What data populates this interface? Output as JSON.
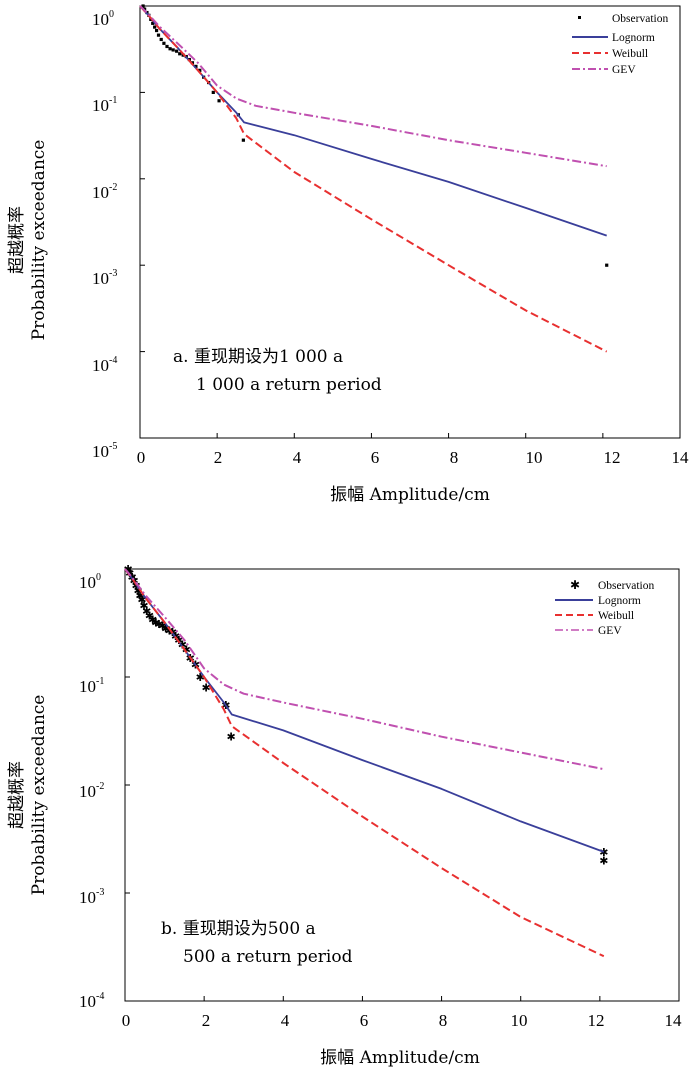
{
  "chart_data": [
    {
      "type": "line",
      "panel_label": "a",
      "annotation_cn": "a. 重现期设为1 000 a",
      "annotation_en": "1 000 a return period",
      "xlabel": "振幅 Amplitude/cm",
      "ylabel_cn": "超越概率",
      "ylabel_en": "Probability exceedance",
      "xlim": [
        0,
        14
      ],
      "ylim": [
        1e-05,
        1
      ],
      "yscale": "log",
      "xticks": [
        0,
        2,
        4,
        6,
        8,
        10,
        12,
        14
      ],
      "yticks": [
        {
          "base": "10",
          "exp": "0",
          "value": 1
        },
        {
          "base": "10",
          "exp": "-1",
          "value": 0.1
        },
        {
          "base": "10",
          "exp": "-2",
          "value": 0.01
        },
        {
          "base": "10",
          "exp": "-3",
          "value": 0.001
        },
        {
          "base": "10",
          "exp": "-4",
          "value": 0.0001
        },
        {
          "base": "10",
          "exp": "-5",
          "value": 1e-05
        }
      ],
      "legend_position": "top-right",
      "series": [
        {
          "name": "Observation",
          "kind": "points",
          "color": "#000000",
          "x": [
            0.08,
            0.12,
            0.18,
            0.23,
            0.28,
            0.33,
            0.38,
            0.43,
            0.48,
            0.55,
            0.62,
            0.7,
            0.78,
            0.86,
            0.95,
            1.03,
            1.12,
            1.2,
            1.28,
            1.36,
            1.45,
            1.55,
            1.65,
            1.78,
            1.9,
            2.05,
            2.55,
            2.68,
            12.1
          ],
          "y": [
            1.0,
            0.92,
            0.84,
            0.78,
            0.7,
            0.63,
            0.57,
            0.52,
            0.46,
            0.41,
            0.37,
            0.34,
            0.32,
            0.31,
            0.3,
            0.28,
            0.27,
            0.26,
            0.24,
            0.22,
            0.2,
            0.18,
            0.15,
            0.13,
            0.1,
            0.08,
            0.055,
            0.028,
            0.001
          ]
        },
        {
          "name": "Lognorm",
          "kind": "line",
          "color": "#3a3f9a",
          "x": [
            0,
            0.2,
            0.5,
            1,
            1.5,
            2,
            2.5,
            2.7,
            4,
            6,
            8,
            10,
            12.1
          ],
          "y": [
            1.0,
            0.8,
            0.55,
            0.32,
            0.18,
            0.1,
            0.058,
            0.045,
            0.032,
            0.017,
            0.0092,
            0.0046,
            0.0022
          ]
        },
        {
          "name": "Weibull",
          "kind": "line",
          "color": "#e83030",
          "x": [
            0,
            0.2,
            0.5,
            1,
            1.5,
            2,
            2.5,
            2.7,
            4,
            6,
            8,
            10,
            12.1
          ],
          "y": [
            1.0,
            0.8,
            0.55,
            0.32,
            0.18,
            0.1,
            0.05,
            0.033,
            0.012,
            0.0034,
            0.001,
            0.0003,
            0.0001
          ]
        },
        {
          "name": "GEV",
          "kind": "line",
          "color": "#c050b0",
          "x": [
            0,
            0.2,
            0.5,
            1,
            1.5,
            2,
            2.5,
            3,
            4,
            6,
            8,
            10,
            12.1
          ],
          "y": [
            1.0,
            0.82,
            0.58,
            0.36,
            0.22,
            0.12,
            0.085,
            0.07,
            0.058,
            0.041,
            0.028,
            0.02,
            0.014
          ]
        }
      ]
    },
    {
      "type": "line",
      "panel_label": "b",
      "annotation_cn": "b. 重现期设为500 a",
      "annotation_en": "500 a return period",
      "xlabel": "振幅 Amplitude/cm",
      "ylabel_cn": "超越概率",
      "ylabel_en": "Probability exceedance",
      "xlim": [
        0,
        14
      ],
      "ylim": [
        0.0001,
        1
      ],
      "yscale": "log",
      "xticks": [
        0,
        2,
        4,
        6,
        8,
        10,
        12,
        14
      ],
      "yticks": [
        {
          "base": "10",
          "exp": "0",
          "value": 1
        },
        {
          "base": "10",
          "exp": "-1",
          "value": 0.1
        },
        {
          "base": "10",
          "exp": "-2",
          "value": 0.01
        },
        {
          "base": "10",
          "exp": "-3",
          "value": 0.001
        },
        {
          "base": "10",
          "exp": "-4",
          "value": 0.0001
        }
      ],
      "legend_position": "top-right",
      "series": [
        {
          "name": "Observation",
          "kind": "points",
          "color": "#000000",
          "x": [
            0.08,
            0.12,
            0.18,
            0.23,
            0.28,
            0.33,
            0.38,
            0.43,
            0.48,
            0.55,
            0.62,
            0.7,
            0.78,
            0.86,
            0.95,
            1.03,
            1.12,
            1.2,
            1.28,
            1.36,
            1.45,
            1.55,
            1.65,
            1.78,
            1.9,
            2.05,
            2.55,
            2.68,
            12.1,
            12.1
          ],
          "y": [
            1.0,
            0.92,
            0.84,
            0.78,
            0.7,
            0.63,
            0.57,
            0.52,
            0.46,
            0.41,
            0.37,
            0.34,
            0.32,
            0.31,
            0.3,
            0.28,
            0.27,
            0.26,
            0.24,
            0.22,
            0.2,
            0.18,
            0.15,
            0.13,
            0.1,
            0.08,
            0.055,
            0.028,
            0.0024,
            0.002
          ]
        },
        {
          "name": "Lognorm",
          "kind": "line",
          "color": "#3a3f9a",
          "x": [
            0,
            0.2,
            0.5,
            1,
            1.5,
            2,
            2.5,
            2.7,
            4,
            6,
            8,
            10,
            12.1
          ],
          "y": [
            1.0,
            0.8,
            0.55,
            0.32,
            0.18,
            0.1,
            0.058,
            0.045,
            0.032,
            0.017,
            0.0092,
            0.0046,
            0.0024
          ]
        },
        {
          "name": "Weibull",
          "kind": "line",
          "color": "#e83030",
          "x": [
            0,
            0.2,
            0.5,
            1,
            1.5,
            2,
            2.5,
            2.7,
            4,
            6,
            8,
            10,
            12.1
          ],
          "y": [
            1.0,
            0.8,
            0.55,
            0.32,
            0.18,
            0.1,
            0.05,
            0.035,
            0.016,
            0.0051,
            0.0017,
            0.0006,
            0.00026
          ]
        },
        {
          "name": "GEV",
          "kind": "line",
          "color": "#c050b0",
          "x": [
            0,
            0.2,
            0.5,
            1,
            1.5,
            2,
            2.5,
            3,
            4,
            6,
            8,
            10,
            12.1
          ],
          "y": [
            1.0,
            0.82,
            0.58,
            0.36,
            0.22,
            0.12,
            0.085,
            0.07,
            0.058,
            0.041,
            0.028,
            0.02,
            0.014
          ]
        }
      ]
    }
  ]
}
